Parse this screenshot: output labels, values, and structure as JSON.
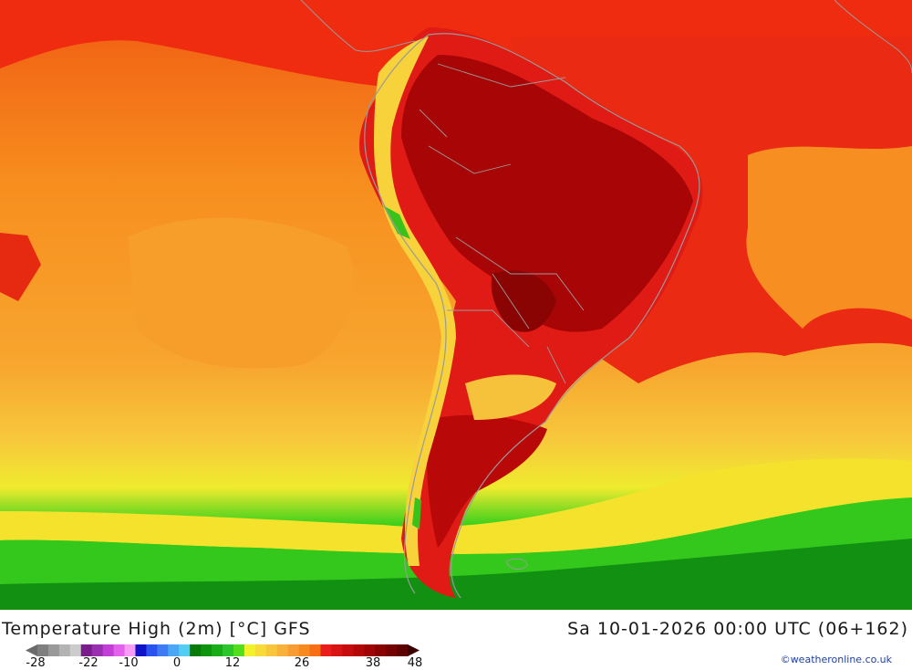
{
  "map": {
    "title": "Temperature High (2m) [°C] GFS",
    "timestamp": "Sa 10-01-2026 00:00 UTC (06+162)",
    "credit": "©weatheronline.co.uk",
    "region": "South America"
  },
  "legend": {
    "colors": [
      "#7f7f7f",
      "#999999",
      "#b3b3b3",
      "#cccccc",
      "#7a1c8c",
      "#9a2fb0",
      "#c23fd6",
      "#e262ec",
      "#f79cf7",
      "#1111c8",
      "#2a52ee",
      "#3f7cf3",
      "#4ba6f4",
      "#53cdf4",
      "#077a07",
      "#0e940e",
      "#18ac18",
      "#2cc52c",
      "#52dd1e",
      "#f2f22c",
      "#f7dc37",
      "#f7c63b",
      "#f7b23b",
      "#f79d33",
      "#f78a1e",
      "#f76f14",
      "#ea1d1d",
      "#d81414",
      "#c60c0c",
      "#b40808",
      "#9f0505",
      "#8a0303",
      "#740202",
      "#5e0101"
    ],
    "labels": [
      "-28",
      "-22",
      "-10",
      "0",
      "12",
      "26",
      "38",
      "48"
    ]
  }
}
